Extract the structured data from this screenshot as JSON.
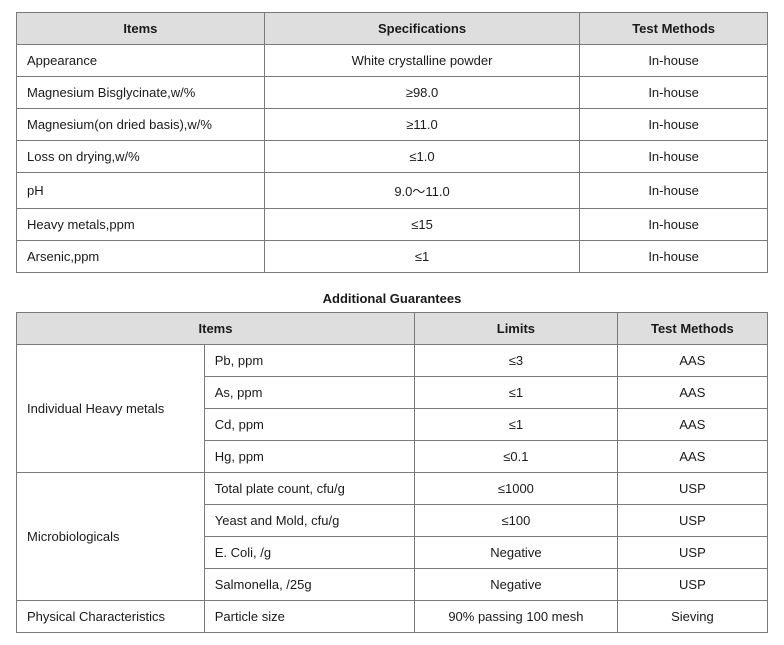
{
  "colors": {
    "header_bg": "#dedede",
    "border": "#7a7a7a",
    "text": "#1a1a1a",
    "page_bg": "#ffffff"
  },
  "typography": {
    "font_family": "Segoe UI, Tahoma, sans-serif",
    "base_fontsize_pt": 10,
    "header_weight": 700
  },
  "table1": {
    "headers": {
      "items": "Items",
      "spec": "Specifications",
      "method": "Test Methods"
    },
    "col_widths_pct": [
      33,
      42,
      25
    ],
    "rows": [
      {
        "item": "Appearance",
        "spec": "White crystalline powder",
        "method": "In-house"
      },
      {
        "item": "Magnesium Bisglycinate,w/%",
        "spec": "≥98.0",
        "method": "In-house"
      },
      {
        "item": "Magnesium(on dried basis),w/%",
        "spec": "≥11.0",
        "method": "In-house"
      },
      {
        "item": "Loss on drying,w/%",
        "spec": "≤1.0",
        "method": "In-house"
      },
      {
        "item": "pH",
        "spec": "9.0～11.0",
        "method": "In-house"
      },
      {
        "item": "Heavy metals,ppm",
        "spec": "≤15",
        "method": "In-house"
      },
      {
        "item": "Arsenic,ppm",
        "spec": "≤1",
        "method": "In-house"
      }
    ]
  },
  "section2_title": "Additional Guarantees",
  "table2": {
    "headers": {
      "items": "Items",
      "limits": "Limits",
      "method": "Test Methods"
    },
    "col_widths_pct": [
      25,
      28,
      27,
      20
    ],
    "groups": [
      {
        "label": "Individual Heavy metals",
        "rows": [
          {
            "sub": "Pb, ppm",
            "limit": "≤3",
            "method": "AAS"
          },
          {
            "sub": "As, ppm",
            "limit": "≤1",
            "method": "AAS"
          },
          {
            "sub": "Cd, ppm",
            "limit": "≤1",
            "method": "AAS"
          },
          {
            "sub": "Hg, ppm",
            "limit": "≤0.1",
            "method": "AAS"
          }
        ]
      },
      {
        "label": "Microbiologicals",
        "rows": [
          {
            "sub": "Total plate count, cfu/g",
            "limit": "≤1000",
            "method": "USP"
          },
          {
            "sub": "Yeast and Mold, cfu/g",
            "limit": "≤100",
            "method": "USP"
          },
          {
            "sub": "E. Coli, /g",
            "limit": "Negative",
            "method": "USP"
          },
          {
            "sub": "Salmonella, /25g",
            "limit": "Negative",
            "method": "USP"
          }
        ]
      },
      {
        "label": "Physical Characteristics",
        "rows": [
          {
            "sub": "Particle size",
            "limit": "90% passing 100 mesh",
            "method": "Sieving"
          }
        ]
      }
    ]
  }
}
